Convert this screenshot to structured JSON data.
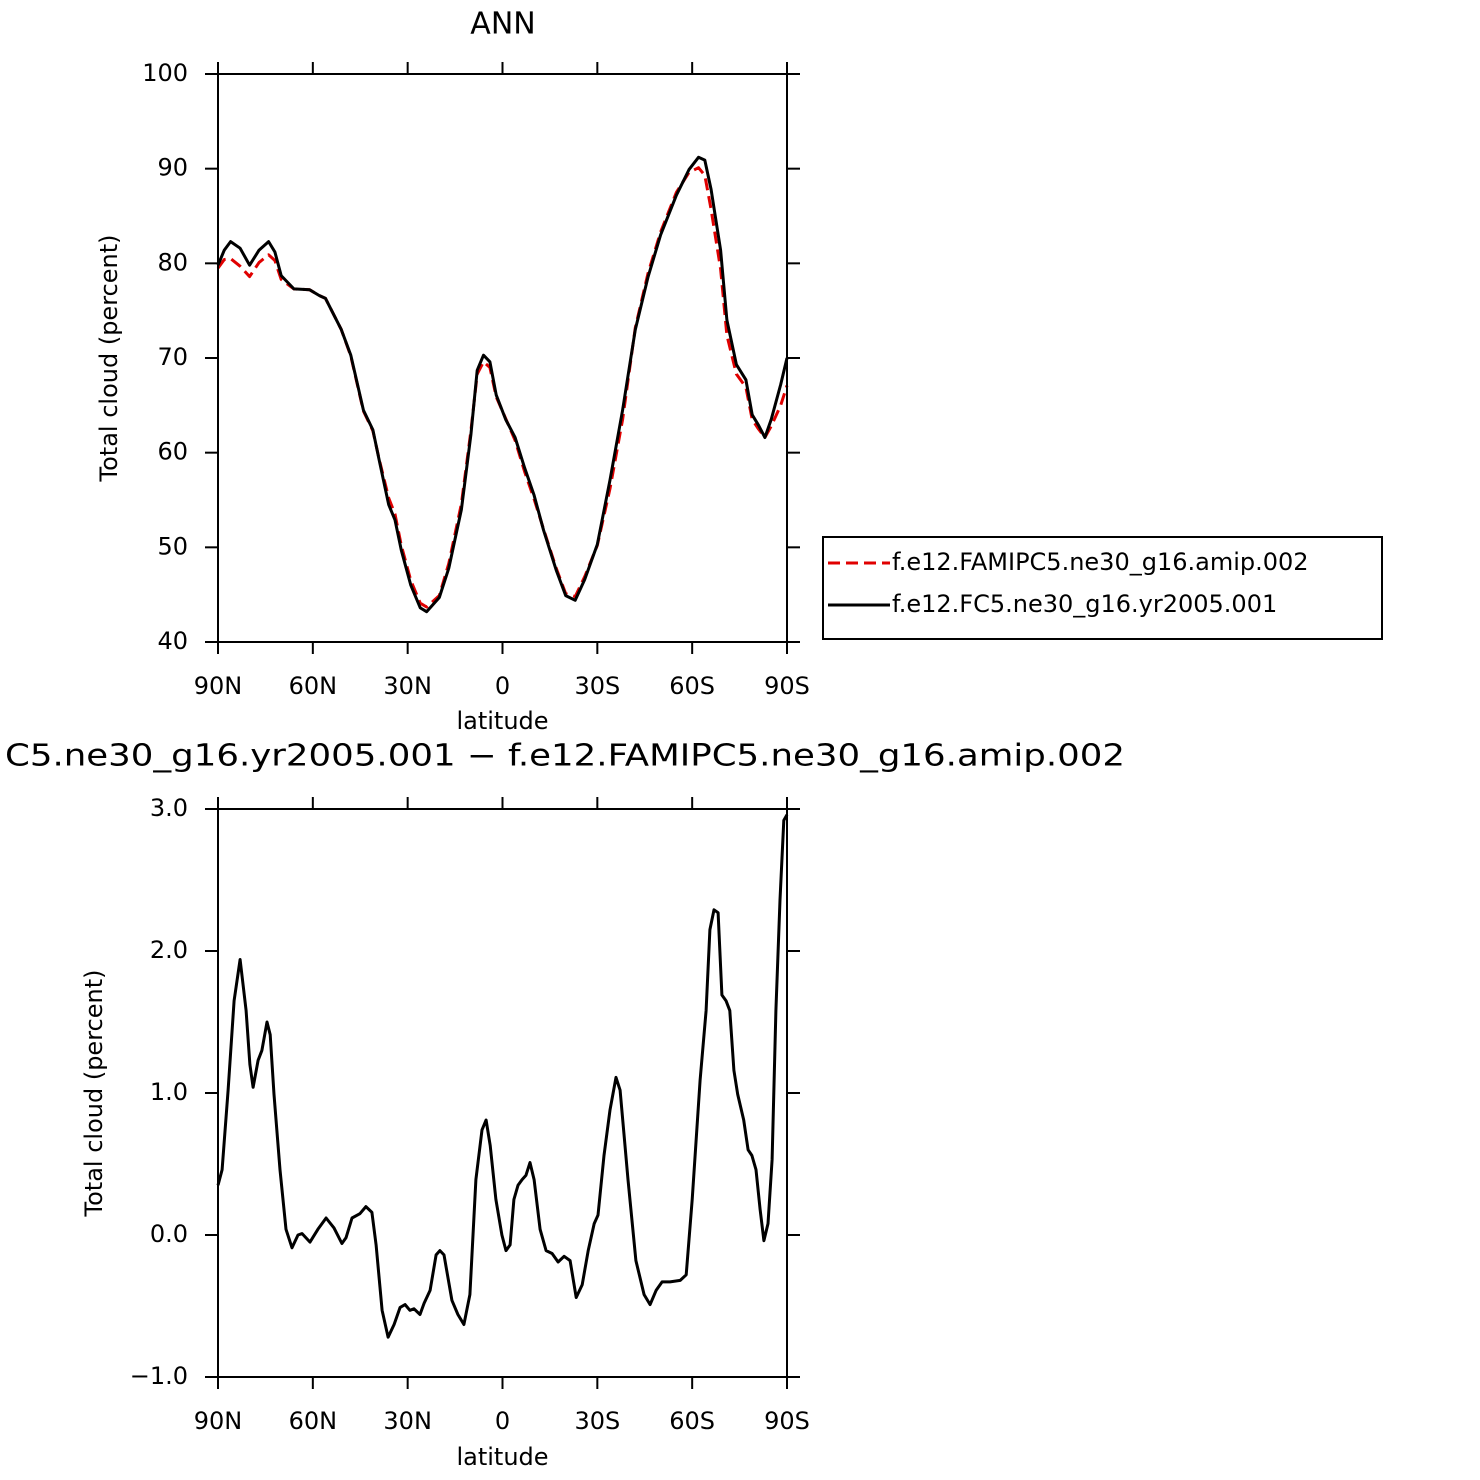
{
  "chart_data": [
    {
      "type": "line",
      "title": "ANN",
      "xlabel": "latitude",
      "ylabel": "Total cloud (percent)",
      "x": [
        90,
        88,
        86,
        83,
        80,
        77,
        74,
        72,
        70,
        66,
        61,
        58,
        56,
        51,
        48,
        44,
        41,
        39,
        36,
        34,
        32,
        29,
        26,
        24,
        20,
        17,
        13,
        10,
        8,
        6,
        4,
        2,
        -1,
        -4,
        -7,
        -10,
        -13,
        -17,
        -20,
        -23,
        -26,
        -30,
        -34,
        -38,
        -42,
        -46,
        -50,
        -55,
        -59,
        -62,
        -64,
        -66,
        -69,
        -71,
        -74,
        -77,
        -79,
        -81,
        -83,
        -85,
        -88,
        -90
      ],
      "series": [
        {
          "name": "f.e12.FAMIPC5.ne30_g16.amip.002",
          "color": "#e00000",
          "linestyle": "dashed",
          "values": [
            79.5,
            80.4,
            80.5,
            79.7,
            78.6,
            80.1,
            80.9,
            80.3,
            78.3,
            77.3,
            77.2,
            76.6,
            76.3,
            73.0,
            70.2,
            64.4,
            62.3,
            59.3,
            55.2,
            53.5,
            50.2,
            46.5,
            44.1,
            43.7,
            44.9,
            48.3,
            54.6,
            62.3,
            68.3,
            69.6,
            69.0,
            65.9,
            63.6,
            61.3,
            58.0,
            55.1,
            51.9,
            47.8,
            45.1,
            44.8,
            46.9,
            50.2,
            56.2,
            63.5,
            73.2,
            78.9,
            83.3,
            87.5,
            89.6,
            90.1,
            89.3,
            85.7,
            79.4,
            72.4,
            68.3,
            66.9,
            63.5,
            62.5,
            61.6,
            62.8,
            65.0,
            67.1
          ]
        },
        {
          "name": "f.e12.FC5.ne30_g16.yr2005.001",
          "color": "#000000",
          "linestyle": "solid",
          "values": [
            79.8,
            81.4,
            82.3,
            81.6,
            79.8,
            81.4,
            82.3,
            81.2,
            78.7,
            77.3,
            77.2,
            76.6,
            76.3,
            73.0,
            70.3,
            64.5,
            62.4,
            59.2,
            54.5,
            52.9,
            49.7,
            46.0,
            43.6,
            43.2,
            44.7,
            47.8,
            54.0,
            61.9,
            68.7,
            70.3,
            69.6,
            66.1,
            63.5,
            61.6,
            58.4,
            55.5,
            51.8,
            47.6,
            44.9,
            44.4,
            46.6,
            50.3,
            57.1,
            64.5,
            73.0,
            78.5,
            83.0,
            87.2,
            89.9,
            91.2,
            90.9,
            87.8,
            81.4,
            74.0,
            69.3,
            67.7,
            64.0,
            62.9,
            61.6,
            63.5,
            67.2,
            70.0
          ]
        }
      ],
      "xlim": [
        90,
        -90
      ],
      "xticks": [
        {
          "value": 90,
          "label": "90N"
        },
        {
          "value": 60,
          "label": "60N"
        },
        {
          "value": 30,
          "label": "30N"
        },
        0,
        {
          "value": -30,
          "label": "30S"
        },
        {
          "value": -60,
          "label": "60S"
        },
        {
          "value": -90,
          "label": "90S"
        }
      ],
      "ylim": [
        40,
        100
      ],
      "yticks": [
        40,
        50,
        60,
        70,
        80,
        90,
        100
      ],
      "legend": "right"
    },
    {
      "type": "line",
      "title": "C5.ne30_g16.yr2005.001 − f.e12.FAMIPC5.ne30_g16.amip.002",
      "xlabel": "latitude",
      "ylabel": "Total cloud (percent)",
      "x": [
        90,
        88.7,
        86.8,
        84.9,
        83,
        81.1,
        79.9,
        78.9,
        77.3,
        76.1,
        74.5,
        73.5,
        72.3,
        70.4,
        68.5,
        66.6,
        64.7,
        63.4,
        60.9,
        58.4,
        55.8,
        53.3,
        50.8,
        49.5,
        47.6,
        45.1,
        43.2,
        41.3,
        40,
        38.1,
        36.2,
        34.3,
        32.4,
        30.8,
        29.3,
        28,
        26.1,
        24.8,
        22.9,
        21,
        19.8,
        18.5,
        16,
        14.1,
        12.2,
        10.3,
        8.4,
        6.5,
        5.2,
        3.9,
        2.1,
        0.2,
        -1.1,
        -2.4,
        -3.6,
        -4.9,
        -6.2,
        -7.4,
        -8.7,
        -10,
        -11.9,
        -13.8,
        -15.7,
        -17.6,
        -19.5,
        -21.4,
        -23.3,
        -25.2,
        -27.1,
        -29,
        -30.2,
        -32.1,
        -34,
        -35.9,
        -37.2,
        -39.7,
        -42.2,
        -44.8,
        -46.7,
        -48.6,
        -50.5,
        -53,
        -56.2,
        -58.1,
        -60,
        -62.5,
        -64.4,
        -65.6,
        -66.9,
        -68.2,
        -69.4,
        -70.7,
        -71.9,
        -73.2,
        -74.4,
        -76.3,
        -77.7,
        -78.9,
        -80.2,
        -81.5,
        -82.7,
        -84,
        -85.3,
        -86.5,
        -87.8,
        -89,
        -90
      ],
      "values": [
        0.35,
        0.46,
        1.02,
        1.65,
        1.94,
        1.58,
        1.2,
        1.04,
        1.23,
        1.3,
        1.5,
        1.41,
        0.99,
        0.46,
        0.04,
        -0.09,
        0.0,
        0.01,
        -0.05,
        0.04,
        0.12,
        0.05,
        -0.06,
        -0.02,
        0.12,
        0.15,
        0.2,
        0.16,
        -0.07,
        -0.53,
        -0.72,
        -0.63,
        -0.51,
        -0.49,
        -0.53,
        -0.52,
        -0.56,
        -0.48,
        -0.39,
        -0.14,
        -0.11,
        -0.14,
        -0.46,
        -0.56,
        -0.63,
        -0.42,
        0.39,
        0.74,
        0.81,
        0.63,
        0.25,
        0.0,
        -0.11,
        -0.07,
        0.25,
        0.35,
        0.39,
        0.42,
        0.51,
        0.39,
        0.04,
        -0.11,
        -0.13,
        -0.19,
        -0.15,
        -0.18,
        -0.44,
        -0.35,
        -0.11,
        0.08,
        0.14,
        0.56,
        0.88,
        1.11,
        1.02,
        0.39,
        -0.18,
        -0.42,
        -0.49,
        -0.39,
        -0.33,
        -0.33,
        -0.32,
        -0.28,
        0.25,
        1.09,
        1.58,
        2.15,
        2.29,
        2.27,
        1.69,
        1.65,
        1.58,
        1.16,
        0.99,
        0.81,
        0.6,
        0.56,
        0.46,
        0.18,
        -0.04,
        0.08,
        0.53,
        1.58,
        2.36,
        2.92,
        2.96
      ],
      "color": "#000000",
      "xlim": [
        90,
        -90
      ],
      "xticks": [
        {
          "value": 90,
          "label": "90N"
        },
        {
          "value": 60,
          "label": "60N"
        },
        {
          "value": 30,
          "label": "30N"
        },
        0,
        {
          "value": -30,
          "label": "30S"
        },
        {
          "value": -60,
          "label": "60S"
        },
        {
          "value": -90,
          "label": "90S"
        }
      ],
      "ylim": [
        -1,
        3
      ],
      "yticks": [
        {
          "value": -1,
          "label": "−1.0"
        },
        {
          "value": 0,
          "label": "0.0"
        },
        {
          "value": 1,
          "label": "1.0"
        },
        {
          "value": 2,
          "label": "2.0"
        },
        {
          "value": 3,
          "label": "3.0"
        }
      ]
    }
  ]
}
